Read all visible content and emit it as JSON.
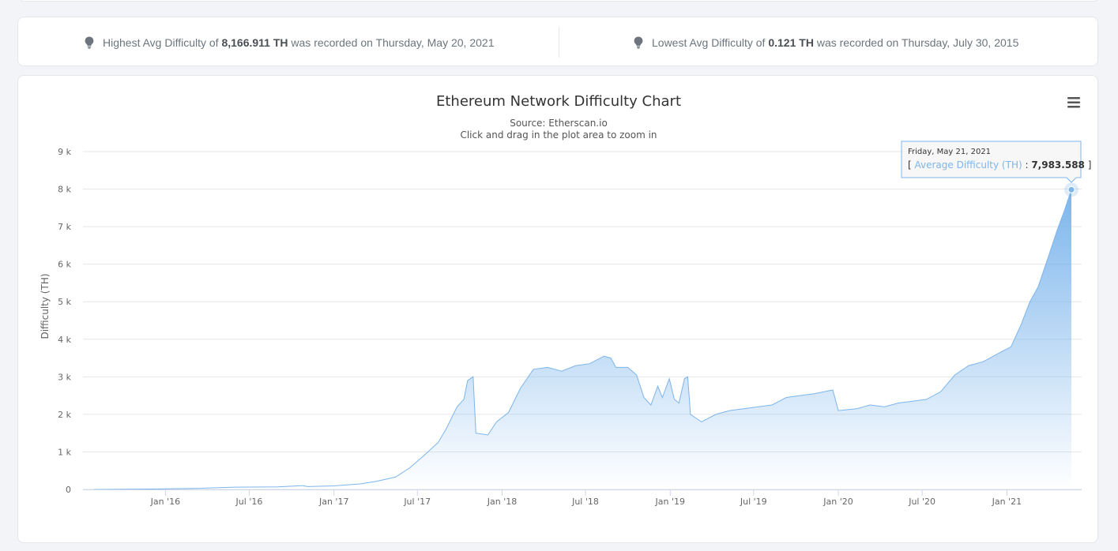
{
  "stats": {
    "high": {
      "prefix": "Highest Avg Difficulty of",
      "value": "8,166.911 TH",
      "suffix": "was recorded on Thursday, May 20, 2021",
      "icon": "lightbulb-icon"
    },
    "low": {
      "prefix": "Lowest Avg Difficulty of",
      "value": "0.121 TH",
      "suffix": "was recorded on Thursday, July 30, 2015",
      "icon": "lightbulb-icon"
    }
  },
  "menu_icon": "hamburger-menu-icon",
  "chart_data": {
    "type": "area",
    "title": "Ethereum Network Difficulty Chart",
    "subtitle_source": "Source: Etherscan.io",
    "subtitle_hint": "Click and drag in the plot area to zoom in",
    "ylabel": "Difficulty (TH)",
    "xlabel": "",
    "ylim": [
      0,
      9000
    ],
    "xlim": [
      "2015-07-30",
      "2021-05-21"
    ],
    "grid": true,
    "color": "#7cb5ec",
    "y_ticks": [
      {
        "v": 0,
        "label": "0"
      },
      {
        "v": 1000,
        "label": "1 k"
      },
      {
        "v": 2000,
        "label": "2 k"
      },
      {
        "v": 3000,
        "label": "3 k"
      },
      {
        "v": 4000,
        "label": "4 k"
      },
      {
        "v": 5000,
        "label": "5 k"
      },
      {
        "v": 6000,
        "label": "6 k"
      },
      {
        "v": 7000,
        "label": "7 k"
      },
      {
        "v": 8000,
        "label": "8 k"
      },
      {
        "v": 9000,
        "label": "9 k"
      }
    ],
    "x_ticks": [
      {
        "date": "2016-01-01",
        "label": "Jan '16"
      },
      {
        "date": "2016-07-01",
        "label": "Jul '16"
      },
      {
        "date": "2017-01-01",
        "label": "Jan '17"
      },
      {
        "date": "2017-07-01",
        "label": "Jul '17"
      },
      {
        "date": "2018-01-01",
        "label": "Jan '18"
      },
      {
        "date": "2018-07-01",
        "label": "Jul '18"
      },
      {
        "date": "2019-01-01",
        "label": "Jan '19"
      },
      {
        "date": "2019-07-01",
        "label": "Jul '19"
      },
      {
        "date": "2020-01-01",
        "label": "Jan '20"
      },
      {
        "date": "2020-07-01",
        "label": "Jul '20"
      },
      {
        "date": "2021-01-01",
        "label": "Jan '21"
      }
    ],
    "series": [
      {
        "name": "Average Difficulty (TH)",
        "points": [
          [
            "2015-07-30",
            0.121
          ],
          [
            "2015-12-01",
            10
          ],
          [
            "2016-03-01",
            25
          ],
          [
            "2016-06-01",
            60
          ],
          [
            "2016-09-01",
            70
          ],
          [
            "2016-10-25",
            100
          ],
          [
            "2016-11-05",
            75
          ],
          [
            "2017-01-01",
            95
          ],
          [
            "2017-03-01",
            150
          ],
          [
            "2017-04-01",
            210
          ],
          [
            "2017-05-15",
            330
          ],
          [
            "2017-06-15",
            580
          ],
          [
            "2017-07-15",
            900
          ],
          [
            "2017-08-15",
            1250
          ],
          [
            "2017-09-01",
            1600
          ],
          [
            "2017-09-25",
            2200
          ],
          [
            "2017-10-10",
            2400
          ],
          [
            "2017-10-18",
            2900
          ],
          [
            "2017-10-30",
            3000
          ],
          [
            "2017-11-05",
            1500
          ],
          [
            "2017-12-01",
            1450
          ],
          [
            "2017-12-20",
            1800
          ],
          [
            "2018-01-15",
            2050
          ],
          [
            "2018-02-10",
            2700
          ],
          [
            "2018-03-10",
            3200
          ],
          [
            "2018-04-10",
            3250
          ],
          [
            "2018-05-10",
            3150
          ],
          [
            "2018-06-10",
            3300
          ],
          [
            "2018-07-10",
            3350
          ],
          [
            "2018-08-10",
            3550
          ],
          [
            "2018-08-25",
            3500
          ],
          [
            "2018-09-05",
            3250
          ],
          [
            "2018-10-01",
            3250
          ],
          [
            "2018-10-20",
            3050
          ],
          [
            "2018-11-05",
            2450
          ],
          [
            "2018-11-20",
            2250
          ],
          [
            "2018-12-05",
            2750
          ],
          [
            "2018-12-15",
            2450
          ],
          [
            "2018-12-30",
            2950
          ],
          [
            "2019-01-10",
            2400
          ],
          [
            "2019-01-20",
            2300
          ],
          [
            "2019-02-01",
            2950
          ],
          [
            "2019-02-08",
            3000
          ],
          [
            "2019-02-14",
            2000
          ],
          [
            "2019-03-10",
            1800
          ],
          [
            "2019-04-10",
            2000
          ],
          [
            "2019-05-10",
            2100
          ],
          [
            "2019-06-10",
            2150
          ],
          [
            "2019-07-10",
            2200
          ],
          [
            "2019-08-10",
            2250
          ],
          [
            "2019-09-10",
            2450
          ],
          [
            "2019-10-10",
            2500
          ],
          [
            "2019-11-10",
            2550
          ],
          [
            "2019-12-20",
            2650
          ],
          [
            "2020-01-01",
            2100
          ],
          [
            "2020-02-10",
            2150
          ],
          [
            "2020-03-10",
            2250
          ],
          [
            "2020-04-10",
            2200
          ],
          [
            "2020-05-10",
            2300
          ],
          [
            "2020-06-10",
            2350
          ],
          [
            "2020-07-10",
            2400
          ],
          [
            "2020-08-10",
            2600
          ],
          [
            "2020-09-10",
            3050
          ],
          [
            "2020-10-10",
            3300
          ],
          [
            "2020-11-10",
            3400
          ],
          [
            "2020-12-10",
            3600
          ],
          [
            "2021-01-10",
            3800
          ],
          [
            "2021-02-01",
            4400
          ],
          [
            "2021-02-20",
            5000
          ],
          [
            "2021-03-10",
            5400
          ],
          [
            "2021-04-01",
            6200
          ],
          [
            "2021-04-20",
            6900
          ],
          [
            "2021-05-05",
            7400
          ],
          [
            "2021-05-21",
            7983.588
          ]
        ]
      }
    ],
    "tooltip": {
      "date_label": "Friday, May 21, 2021",
      "open": "[ ",
      "series_label": "Average Difficulty (TH)",
      "separator": " : ",
      "value_label": "7,983.588",
      "close": " ]",
      "point": [
        "2021-05-21",
        7983.588
      ]
    }
  }
}
